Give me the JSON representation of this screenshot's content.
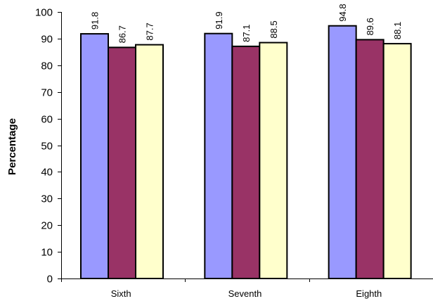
{
  "chart_data": {
    "type": "bar",
    "categories": [
      "Sixth",
      "Seventh",
      "Eighth"
    ],
    "series": [
      {
        "color": "#9999ff",
        "values": [
          91.8,
          91.9,
          94.8
        ]
      },
      {
        "color": "#993366",
        "values": [
          86.7,
          87.1,
          89.6
        ]
      },
      {
        "color": "#ffffcc",
        "values": [
          87.7,
          88.5,
          88.1
        ]
      }
    ],
    "ylabel": "Percentage",
    "xlabel": "",
    "ylim": [
      0,
      100
    ],
    "yticks": [
      "0",
      "10",
      "20",
      "30",
      "40",
      "50",
      "60",
      "70",
      "80",
      "90",
      "100"
    ],
    "data_labels": [
      [
        "91.8",
        "91.9",
        "94.8"
      ],
      [
        "86.7",
        "87.1",
        "89.6"
      ],
      [
        "87.7",
        "88.5",
        "88.1"
      ]
    ],
    "legend": "none",
    "grid": false
  }
}
